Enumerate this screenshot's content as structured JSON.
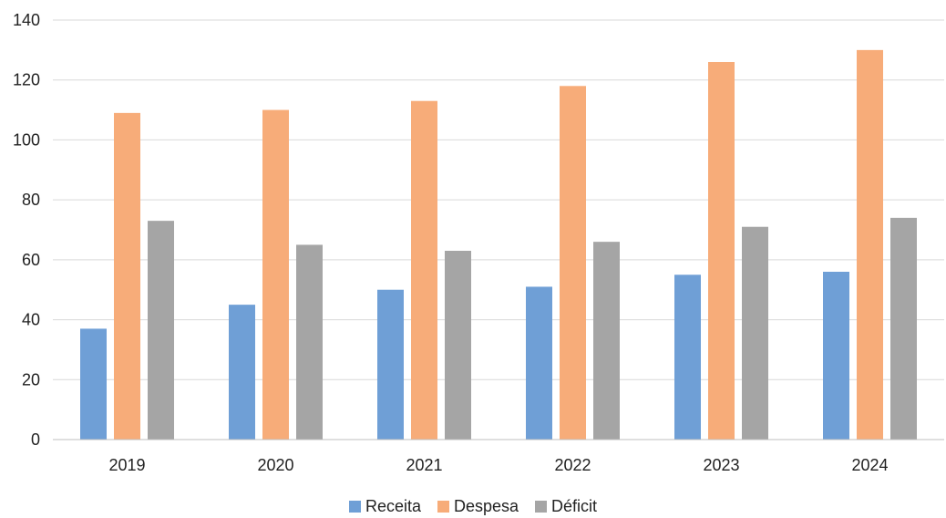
{
  "chart_data": {
    "type": "bar",
    "categories": [
      "2019",
      "2020",
      "2021",
      "2022",
      "2023",
      "2024"
    ],
    "series": [
      {
        "name": "Receita",
        "color": "#6f9fd6",
        "values": [
          37,
          45,
          50,
          51,
          55,
          56
        ]
      },
      {
        "name": "Despesa",
        "color": "#f7ac79",
        "values": [
          109,
          110,
          113,
          118,
          126,
          130
        ]
      },
      {
        "name": "Déficit",
        "color": "#a5a5a5",
        "values": [
          73,
          65,
          63,
          66,
          71,
          74
        ]
      }
    ],
    "ylim": [
      0,
      140
    ],
    "yticks": [
      "0",
      "20",
      "40",
      "60",
      "80",
      "100",
      "120",
      "140"
    ],
    "grid": true,
    "legend_position": "bottom"
  }
}
